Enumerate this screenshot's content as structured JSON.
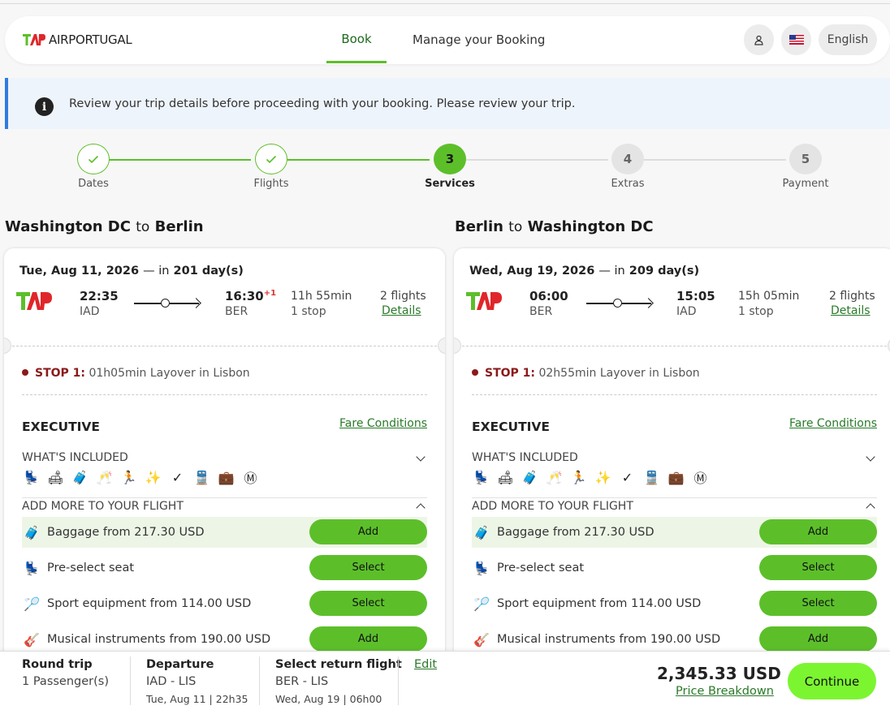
{
  "header": {
    "logo_text": "AIRPORTUGAL",
    "nav_book": "Book",
    "nav_manage": "Manage your Booking",
    "language": "English"
  },
  "banner": {
    "message": "Review your trip details before proceeding with your booking. Please review your trip."
  },
  "stepper": {
    "steps": [
      {
        "num": "1",
        "label": "Dates",
        "state": "done"
      },
      {
        "num": "2",
        "label": "Flights",
        "state": "done"
      },
      {
        "num": "3",
        "label": "Services",
        "state": "current"
      },
      {
        "num": "4",
        "label": "Extras",
        "state": "todo"
      },
      {
        "num": "5",
        "label": "Payment",
        "state": "todo"
      }
    ]
  },
  "outbound": {
    "route_from": "Washington DC",
    "route_to_word": "to",
    "route_to": "Berlin",
    "date": "Tue, Aug 11, 2026",
    "in_prefix": "— in",
    "days": "201 day(s)",
    "dep_time": "22:35",
    "dep_code": "IAD",
    "arr_time": "16:30",
    "arr_plus": "+1",
    "arr_code": "BER",
    "duration": "11h 55min",
    "stops": "1 stop",
    "flights": "2 flights",
    "details": "Details",
    "stop_label": "STOP 1:",
    "stop_text": "01h05min Layover in Lisbon",
    "cabin": "EXECUTIVE",
    "fare_conditions": "Fare Conditions",
    "whats_included": "WHAT'S INCLUDED",
    "add_more": "ADD MORE TO YOUR FLIGHT",
    "extras": [
      {
        "icon": "luggage-icon",
        "label": "Baggage  from 217.30 USD",
        "button": "Add"
      },
      {
        "icon": "seat-icon",
        "label": " Pre-select seat",
        "button": "Select"
      },
      {
        "icon": "sport-equipment-icon",
        "label": "Sport equipment  from 114.00 USD",
        "button": "Select"
      },
      {
        "icon": "guitar-icon",
        "label": "Musical instruments  from 190.00 USD",
        "button": "Add"
      }
    ]
  },
  "inbound": {
    "route_from": "Berlin",
    "route_to_word": "to",
    "route_to": "Washington DC",
    "date": "Wed, Aug 19, 2026",
    "in_prefix": "— in",
    "days": "209 day(s)",
    "dep_time": "06:00",
    "dep_code": "BER",
    "arr_time": "15:05",
    "arr_plus": "",
    "arr_code": "IAD",
    "duration": "15h 05min",
    "stops": "1 stop",
    "flights": "2 flights",
    "details": "Details",
    "stop_label": "STOP 1:",
    "stop_text": "02h55min Layover in Lisbon",
    "cabin": "EXECUTIVE",
    "fare_conditions": "Fare Conditions",
    "whats_included": "WHAT'S INCLUDED",
    "add_more": "ADD MORE TO YOUR FLIGHT",
    "extras": [
      {
        "icon": "luggage-icon",
        "label": "Baggage  from 217.30 USD",
        "button": "Add"
      },
      {
        "icon": "seat-icon",
        "label": " Pre-select seat",
        "button": "Select"
      },
      {
        "icon": "sport-equipment-icon",
        "label": "Sport equipment  from 114.00 USD",
        "button": "Select"
      },
      {
        "icon": "guitar-icon",
        "label": "Musical instruments  from 190.00 USD",
        "button": "Add"
      }
    ]
  },
  "included_icons": [
    "seat-icon",
    "lounge-icon",
    "baggage-icon",
    "champagne-icon",
    "fast-track-icon",
    "priority-icon",
    "miles-icon",
    "train-icon",
    "luggage-icon",
    "miles-m-icon"
  ],
  "footer": {
    "trip_type": "Round trip",
    "passengers": "1 Passenger(s)",
    "departure_label": "Departure",
    "departure_route": "IAD - LIS",
    "departure_date": "Tue, Aug 11 | 22h35",
    "return_label": "Select return flight",
    "return_route": "BER - LIS",
    "return_date": "Wed, Aug 19 | 06h00",
    "edit": "Edit",
    "price": "2,345.33 USD",
    "price_breakdown": "Price Breakdown",
    "continue": "Continue"
  },
  "colors": {
    "accent_green": "#5cbf2a",
    "continue_green": "#7cf531",
    "link_green": "#2a7a2a",
    "stop_red": "#8b1a1a",
    "banner_blue": "#2f7de1"
  }
}
